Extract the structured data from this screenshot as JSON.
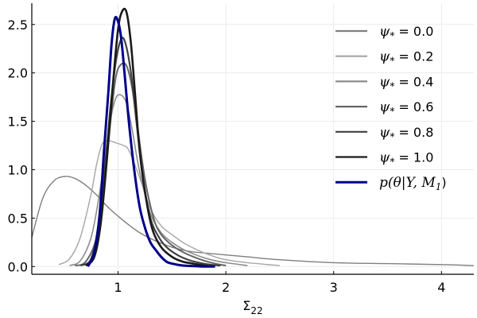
{
  "chart_data": {
    "type": "line",
    "title": "",
    "xlabel": "Σ₂₂",
    "xlabel_main": "Σ",
    "xlabel_sub": "22",
    "ylabel": "",
    "xlim": [
      0.2,
      4.3
    ],
    "ylim": [
      -0.08,
      2.72
    ],
    "xticks": [
      1,
      2,
      3,
      4
    ],
    "xtick_labels": [
      "1",
      "2",
      "3",
      "4"
    ],
    "yticks": [
      0.0,
      0.5,
      1.0,
      1.5,
      2.0,
      2.5
    ],
    "ytick_labels": [
      "0.0",
      "0.5",
      "1.0",
      "1.5",
      "2.0",
      "2.5"
    ],
    "grid": true,
    "legend_position": "top-right",
    "series": [
      {
        "name": "ψ* = 0.0",
        "legend_main": "ψ",
        "legend_sub": "*",
        "legend_value": " = 0.0",
        "color": "#7f7f7f",
        "x": [
          0.2,
          0.3,
          0.4,
          0.5,
          0.6,
          0.7,
          0.8,
          0.9,
          1.0,
          1.1,
          1.2,
          1.3,
          1.4,
          1.5,
          1.6,
          1.7,
          1.8,
          2.0,
          2.2,
          2.5,
          3.0,
          3.5,
          4.0,
          4.3
        ],
        "y": [
          0.3,
          0.7,
          0.88,
          0.93,
          0.91,
          0.84,
          0.74,
          0.62,
          0.52,
          0.43,
          0.35,
          0.29,
          0.24,
          0.2,
          0.17,
          0.15,
          0.14,
          0.12,
          0.1,
          0.07,
          0.04,
          0.03,
          0.02,
          0.01
        ]
      },
      {
        "name": "ψ* = 0.2",
        "legend_main": "ψ",
        "legend_sub": "*",
        "legend_value": " = 0.2",
        "color": "#a6a6a6",
        "x": [
          0.45,
          0.55,
          0.65,
          0.75,
          0.8,
          0.85,
          0.9,
          0.95,
          1.0,
          1.05,
          1.1,
          1.2,
          1.3,
          1.4,
          1.5,
          1.6,
          1.7,
          1.8,
          1.9,
          2.0,
          2.2,
          2.5
        ],
        "y": [
          0.02,
          0.08,
          0.3,
          0.75,
          1.05,
          1.26,
          1.3,
          1.29,
          1.27,
          1.25,
          1.2,
          0.92,
          0.6,
          0.42,
          0.33,
          0.25,
          0.19,
          0.14,
          0.1,
          0.07,
          0.04,
          0.01
        ]
      },
      {
        "name": "ψ* = 0.4",
        "legend_main": "ψ",
        "legend_sub": "*",
        "legend_value": " = 0.4",
        "color": "#8c8c8c",
        "x": [
          0.55,
          0.65,
          0.75,
          0.82,
          0.88,
          0.93,
          0.98,
          1.03,
          1.08,
          1.13,
          1.2,
          1.3,
          1.4,
          1.5,
          1.6,
          1.7,
          1.8,
          1.9,
          2.0,
          2.2
        ],
        "y": [
          0.01,
          0.06,
          0.3,
          0.7,
          1.15,
          1.52,
          1.74,
          1.77,
          1.68,
          1.42,
          0.98,
          0.55,
          0.35,
          0.25,
          0.18,
          0.13,
          0.09,
          0.06,
          0.04,
          0.01
        ]
      },
      {
        "name": "ψ* = 0.6",
        "legend_main": "ψ",
        "legend_sub": "*",
        "legend_value": " = 0.6",
        "color": "#666666",
        "x": [
          0.6,
          0.7,
          0.8,
          0.87,
          0.93,
          0.98,
          1.03,
          1.08,
          1.13,
          1.18,
          1.25,
          1.33,
          1.4,
          1.5,
          1.6,
          1.7,
          1.8,
          1.9,
          2.0
        ],
        "y": [
          0.01,
          0.05,
          0.3,
          0.85,
          1.5,
          1.96,
          2.09,
          2.07,
          1.85,
          1.45,
          0.9,
          0.5,
          0.33,
          0.22,
          0.15,
          0.1,
          0.06,
          0.03,
          0.01
        ]
      },
      {
        "name": "ψ* = 0.8",
        "legend_main": "ψ",
        "legend_sub": "*",
        "legend_value": " = 0.8",
        "color": "#404040",
        "x": [
          0.65,
          0.75,
          0.82,
          0.88,
          0.93,
          0.98,
          1.03,
          1.07,
          1.12,
          1.17,
          1.23,
          1.3,
          1.38,
          1.45,
          1.55,
          1.65,
          1.75,
          1.85,
          1.95
        ],
        "y": [
          0.01,
          0.08,
          0.45,
          1.05,
          1.65,
          2.12,
          2.35,
          2.3,
          2.0,
          1.5,
          0.92,
          0.5,
          0.3,
          0.2,
          0.12,
          0.07,
          0.04,
          0.02,
          0.01
        ]
      },
      {
        "name": "ψ* = 1.0",
        "legend_main": "ψ",
        "legend_sub": "*",
        "legend_value": " = 1.0",
        "color": "#1a1a1a",
        "x": [
          0.7,
          0.78,
          0.84,
          0.9,
          0.95,
          1.0,
          1.04,
          1.08,
          1.12,
          1.16,
          1.2,
          1.26,
          1.32,
          1.4,
          1.5,
          1.6,
          1.7,
          1.8,
          1.9
        ],
        "y": [
          0.01,
          0.1,
          0.45,
          1.15,
          1.85,
          2.45,
          2.64,
          2.62,
          2.3,
          1.75,
          1.2,
          0.7,
          0.38,
          0.2,
          0.1,
          0.05,
          0.03,
          0.01,
          0.0
        ]
      },
      {
        "name": "p(θ|Y, M₁)",
        "legend_main": "p(θ|Y, M",
        "legend_sub": "1",
        "legend_value": ")",
        "color": "#00008b",
        "x": [
          0.72,
          0.78,
          0.83,
          0.87,
          0.91,
          0.94,
          0.97,
          1.0,
          1.03,
          1.06,
          1.1,
          1.15,
          1.2,
          1.25,
          1.3,
          1.35,
          1.4,
          1.45,
          1.5,
          1.6,
          1.7,
          1.8,
          1.9
        ],
        "y": [
          0.0,
          0.15,
          0.55,
          1.2,
          1.8,
          2.3,
          2.56,
          2.53,
          2.35,
          2.0,
          1.5,
          1.0,
          0.62,
          0.4,
          0.25,
          0.17,
          0.1,
          0.05,
          0.03,
          0.01,
          0.005,
          0.0,
          0.0
        ]
      }
    ]
  }
}
